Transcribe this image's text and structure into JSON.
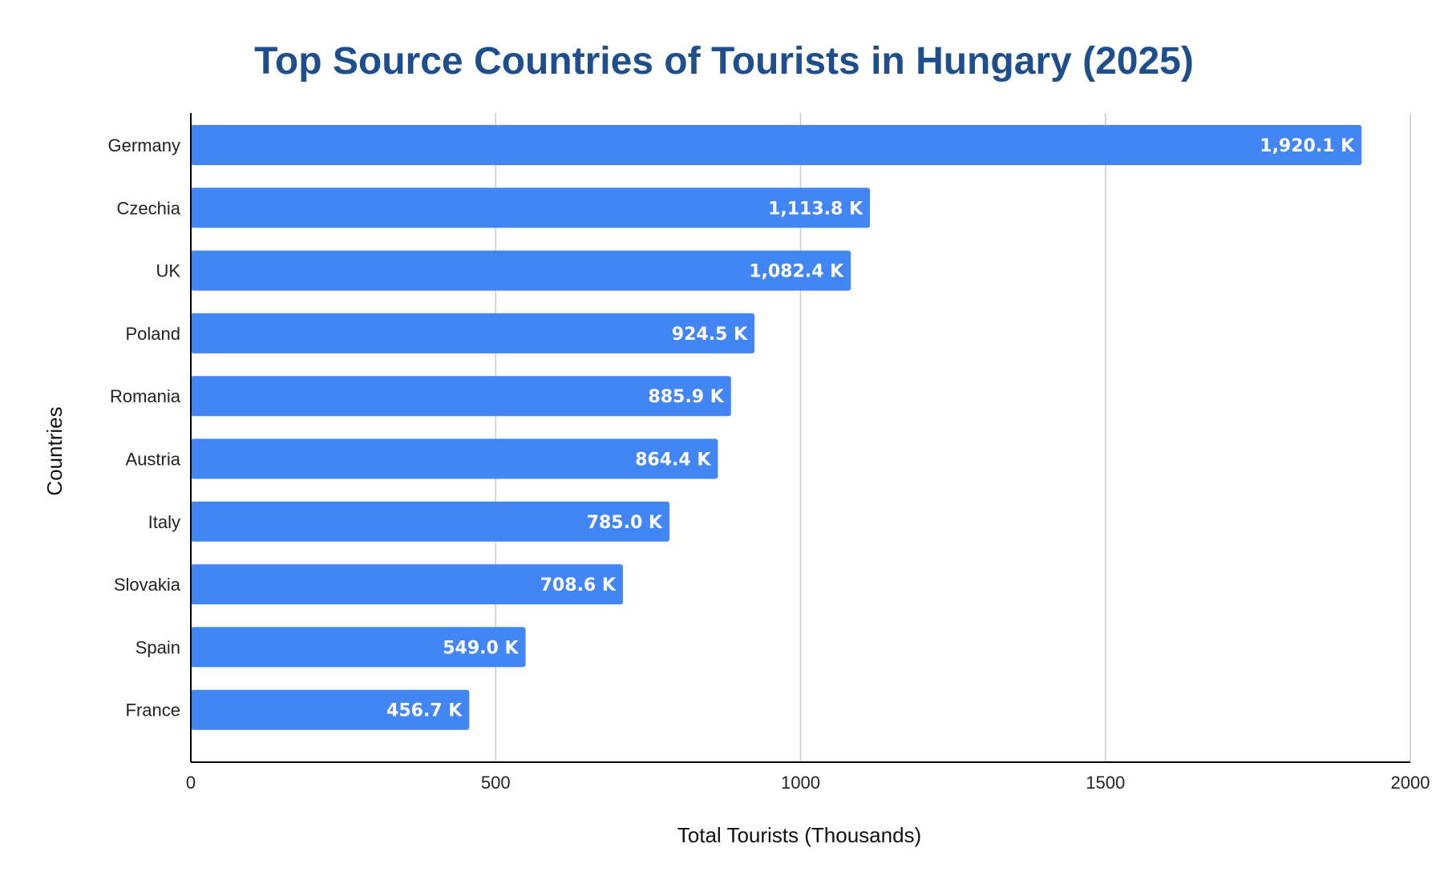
{
  "chart_data": {
    "type": "bar",
    "orientation": "horizontal",
    "title": "Top Source Countries of Tourists in Hungary (2025)",
    "xlabel": "Total Tourists (Thousands)",
    "ylabel": "Countries",
    "categories": [
      "Germany",
      "Czechia",
      "UK",
      "Poland",
      "Romania",
      "Austria",
      "Italy",
      "Slovakia",
      "Spain",
      "France"
    ],
    "values": [
      1920.1,
      1113.8,
      1082.4,
      924.5,
      885.9,
      864.4,
      785.0,
      708.6,
      549.0,
      456.7
    ],
    "data_labels": [
      "1,920.1 K",
      "1,113.8 K",
      "1,082.4 K",
      "924.5 K",
      "885.9 K",
      "864.4 K",
      "785.0 K",
      "708.6 K",
      "549.0 K",
      "456.7 K"
    ],
    "xlim": [
      0,
      2000
    ],
    "xticks": [
      0,
      500,
      1000,
      1500,
      2000
    ],
    "xtick_labels": [
      "0",
      "500",
      "1000",
      "1500",
      "2000"
    ],
    "grid": true,
    "legend": "none",
    "colors": {
      "bar": "#4285f4",
      "title": "#1f4e8c",
      "grid": "#cccccc",
      "axis": "#000000",
      "data_label": "#ffffff"
    }
  }
}
